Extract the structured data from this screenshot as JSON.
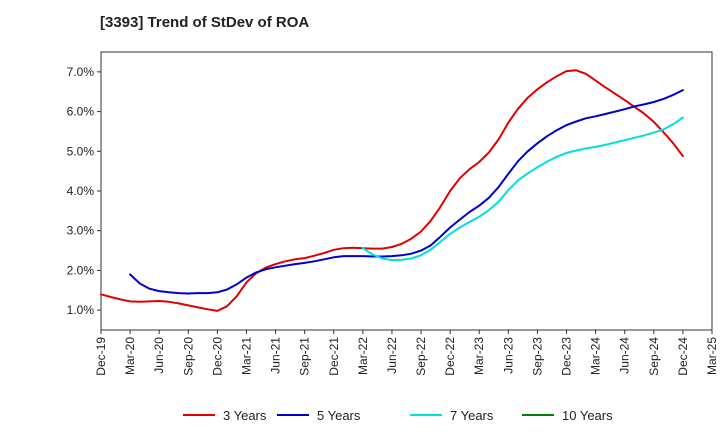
{
  "chart_data": {
    "type": "line",
    "title": "[3393]  Trend of StDev of ROA",
    "xlabel": "",
    "ylabel": "",
    "ylim": [
      0.5,
      7.5
    ],
    "y_ticks": [
      "1.0%",
      "2.0%",
      "3.0%",
      "4.0%",
      "5.0%",
      "6.0%",
      "7.0%"
    ],
    "y_tick_values": [
      1,
      2,
      3,
      4,
      5,
      6,
      7
    ],
    "x_ticks": [
      "Dec-19",
      "Mar-20",
      "Jun-20",
      "Sep-20",
      "Dec-20",
      "Mar-21",
      "Jun-21",
      "Sep-21",
      "Dec-21",
      "Mar-22",
      "Jun-22",
      "Sep-22",
      "Dec-22",
      "Mar-23",
      "Jun-23",
      "Sep-23",
      "Dec-23",
      "Mar-24",
      "Jun-24",
      "Sep-24",
      "Dec-24",
      "Mar-25"
    ],
    "grid": true,
    "legend_position": "bottom",
    "series": [
      {
        "name": "3 Years",
        "color": "#e00000",
        "x": [
          "Dec-19",
          "Jan-20",
          "Feb-20",
          "Mar-20",
          "Apr-20",
          "May-20",
          "Jun-20",
          "Jul-20",
          "Aug-20",
          "Sep-20",
          "Oct-20",
          "Nov-20",
          "Dec-20",
          "Jan-21",
          "Feb-21",
          "Mar-21",
          "Apr-21",
          "May-21",
          "Jun-21",
          "Jul-21",
          "Aug-21",
          "Sep-21",
          "Oct-21",
          "Nov-21",
          "Dec-21",
          "Jan-22",
          "Feb-22",
          "Mar-22",
          "Apr-22",
          "May-22",
          "Jun-22",
          "Jul-22",
          "Aug-22",
          "Sep-22",
          "Oct-22",
          "Nov-22",
          "Dec-22",
          "Jan-23",
          "Feb-23",
          "Mar-23",
          "Apr-23",
          "May-23",
          "Jun-23",
          "Jul-23",
          "Aug-23",
          "Sep-23",
          "Oct-23",
          "Nov-23",
          "Dec-23",
          "Jan-24",
          "Feb-24",
          "Mar-24",
          "Apr-24",
          "May-24",
          "Jun-24",
          "Jul-24",
          "Aug-24",
          "Sep-24",
          "Oct-24",
          "Nov-24",
          "Dec-24"
        ],
        "values": [
          1.4,
          1.33,
          1.27,
          1.22,
          1.21,
          1.22,
          1.23,
          1.21,
          1.17,
          1.12,
          1.07,
          1.02,
          0.98,
          1.1,
          1.35,
          1.7,
          1.93,
          2.07,
          2.16,
          2.23,
          2.28,
          2.31,
          2.37,
          2.44,
          2.52,
          2.56,
          2.57,
          2.56,
          2.55,
          2.55,
          2.59,
          2.67,
          2.8,
          2.98,
          3.25,
          3.6,
          4.0,
          4.32,
          4.55,
          4.73,
          4.97,
          5.3,
          5.72,
          6.07,
          6.35,
          6.56,
          6.74,
          6.89,
          7.02,
          7.04,
          6.95,
          6.78,
          6.61,
          6.45,
          6.29,
          6.12,
          5.95,
          5.74,
          5.48,
          5.2,
          4.88
        ]
      },
      {
        "name": "5 Years",
        "color": "#0000cc",
        "x": [
          "Mar-20",
          "Apr-20",
          "May-20",
          "Jun-20",
          "Jul-20",
          "Aug-20",
          "Sep-20",
          "Oct-20",
          "Nov-20",
          "Dec-20",
          "Jan-21",
          "Feb-21",
          "Mar-21",
          "Apr-21",
          "May-21",
          "Jun-21",
          "Jul-21",
          "Aug-21",
          "Sep-21",
          "Oct-21",
          "Nov-21",
          "Dec-21",
          "Jan-22",
          "Feb-22",
          "Mar-22",
          "Apr-22",
          "May-22",
          "Jun-22",
          "Jul-22",
          "Aug-22",
          "Sep-22",
          "Oct-22",
          "Nov-22",
          "Dec-22",
          "Jan-23",
          "Feb-23",
          "Mar-23",
          "Apr-23",
          "May-23",
          "Jun-23",
          "Jul-23",
          "Aug-23",
          "Sep-23",
          "Oct-23",
          "Nov-23",
          "Dec-23",
          "Jan-24",
          "Feb-24",
          "Mar-24",
          "Apr-24",
          "May-24",
          "Jun-24",
          "Jul-24",
          "Aug-24",
          "Sep-24",
          "Oct-24",
          "Nov-24",
          "Dec-24"
        ],
        "values": [
          1.9,
          1.67,
          1.54,
          1.48,
          1.45,
          1.43,
          1.42,
          1.43,
          1.43,
          1.45,
          1.52,
          1.65,
          1.82,
          1.95,
          2.03,
          2.08,
          2.12,
          2.16,
          2.19,
          2.23,
          2.28,
          2.33,
          2.36,
          2.36,
          2.36,
          2.35,
          2.35,
          2.36,
          2.38,
          2.42,
          2.5,
          2.63,
          2.85,
          3.08,
          3.28,
          3.47,
          3.63,
          3.83,
          4.1,
          4.43,
          4.75,
          5.0,
          5.2,
          5.38,
          5.53,
          5.66,
          5.75,
          5.83,
          5.88,
          5.94,
          6.0,
          6.06,
          6.13,
          6.18,
          6.24,
          6.32,
          6.42,
          6.54
        ]
      },
      {
        "name": "7 Years",
        "color": "#00e0e0",
        "x": [
          "Mar-22",
          "Apr-22",
          "May-22",
          "Jun-22",
          "Jul-22",
          "Aug-22",
          "Sep-22",
          "Oct-22",
          "Nov-22",
          "Dec-22",
          "Jan-23",
          "Feb-23",
          "Mar-23",
          "Apr-23",
          "May-23",
          "Jun-23",
          "Jul-23",
          "Aug-23",
          "Sep-23",
          "Oct-23",
          "Nov-23",
          "Dec-23",
          "Jan-24",
          "Feb-24",
          "Mar-24",
          "Apr-24",
          "May-24",
          "Jun-24",
          "Jul-24",
          "Aug-24",
          "Sep-24",
          "Oct-24",
          "Nov-24",
          "Dec-24"
        ],
        "values": [
          2.56,
          2.4,
          2.3,
          2.26,
          2.27,
          2.3,
          2.38,
          2.52,
          2.72,
          2.92,
          3.08,
          3.22,
          3.35,
          3.52,
          3.73,
          4.02,
          4.27,
          4.44,
          4.6,
          4.74,
          4.86,
          4.96,
          5.02,
          5.07,
          5.11,
          5.16,
          5.22,
          5.28,
          5.34,
          5.4,
          5.47,
          5.55,
          5.68,
          5.85
        ]
      },
      {
        "name": "10 Years",
        "color": "#008000",
        "x": [],
        "values": []
      }
    ]
  }
}
